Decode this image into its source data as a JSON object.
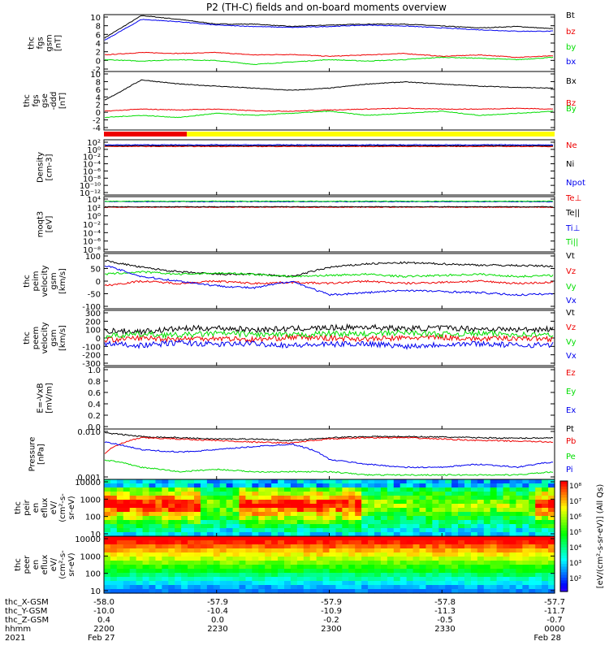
{
  "title": "P2 (TH-C) fields and on-board moments overview",
  "colors": {
    "black": "#000000",
    "red": "#ee0000",
    "green": "#00dd00",
    "blue": "#0000ee",
    "yellow": "#ffff00"
  },
  "chart_data": [
    {
      "type": "line",
      "id": "fgs",
      "ylabel": [
        "thc",
        "fgs",
        "gsm",
        "[nT]"
      ],
      "yticks": [
        "10",
        "8",
        "6",
        "4",
        "2",
        "0",
        "-2"
      ],
      "ylim": [
        -2,
        10
      ],
      "series": [
        {
          "name": "Bt",
          "color": "black",
          "y": [
            5,
            9.8,
            9,
            8,
            8,
            7.5,
            7.8,
            8,
            8,
            7.6,
            7.2,
            7.5,
            7
          ]
        },
        {
          "name": "bz",
          "color": "red",
          "y": [
            1.5,
            2,
            1.8,
            2,
            1.5,
            1.6,
            1.2,
            1.5,
            1.8,
            1.2,
            1.5,
            1,
            1.3
          ]
        },
        {
          "name": "by",
          "color": "green",
          "y": [
            0.5,
            0.2,
            0.5,
            0.3,
            -0.5,
            0,
            0.5,
            0.2,
            0.5,
            1,
            0.8,
            0.5,
            1
          ]
        },
        {
          "name": "bx",
          "color": "blue",
          "y": [
            4.5,
            9,
            8.5,
            7.8,
            7.5,
            7.3,
            7.5,
            7.8,
            7.6,
            7.2,
            6.8,
            6.5,
            6.5
          ]
        }
      ]
    },
    {
      "type": "line",
      "id": "fgs-gse",
      "ylabel": [
        "thc",
        "fgs",
        "gse",
        "-ddd",
        "[nT]"
      ],
      "yticks": [
        "10",
        "8",
        "6",
        "4",
        "2",
        "0",
        "-2",
        "-4"
      ],
      "ylim": [
        -4,
        10
      ],
      "series": [
        {
          "name": "Bx",
          "color": "black",
          "y": [
            3,
            8,
            7,
            6.5,
            6,
            5.5,
            6,
            7,
            7.5,
            7,
            6.5,
            6.2,
            6
          ]
        },
        {
          "name": "Bz",
          "color": "red",
          "y": [
            0.5,
            1,
            0.8,
            1,
            0.6,
            0.5,
            0.8,
            1,
            1.2,
            1,
            1,
            1.2,
            1
          ]
        },
        {
          "name": "By",
          "color": "green",
          "y": [
            -1,
            -0.5,
            -1,
            0,
            -0.5,
            0,
            0.5,
            -0.5,
            0,
            0.5,
            -0.5,
            0,
            0.5
          ]
        }
      ]
    },
    {
      "type": "line",
      "id": "density",
      "ylabel": [
        "Density",
        "[cm-3]"
      ],
      "yticks": [
        "10²",
        "10⁰",
        "10⁻²",
        "10⁻⁴",
        "10⁻⁶",
        "10⁻⁸",
        "10⁻¹⁰",
        "10⁻¹²"
      ],
      "ylim": [
        -12,
        2
      ],
      "series": [
        {
          "name": "Ne",
          "color": "red",
          "y": [
            0.3,
            0.3,
            0.3,
            0.3,
            0.3,
            0.3,
            0.3,
            0.3,
            0.3
          ]
        },
        {
          "name": "Ni",
          "color": "black",
          "y": [
            0.5,
            0.5,
            0.5,
            0.5,
            0.5,
            0.5,
            0.5,
            0.5,
            0.5
          ]
        },
        {
          "name": "Npot",
          "color": "blue",
          "y": [
            0.7,
            0.7,
            0.7,
            0.7,
            0.7,
            0.7,
            0.7,
            0.7,
            0.7
          ]
        }
      ]
    },
    {
      "type": "line",
      "id": "temp",
      "ylabel": [
        "moqt3",
        "[eV]"
      ],
      "yticks": [
        "10⁴",
        "10²",
        "10⁰",
        "10⁻²",
        "10⁻⁴",
        "10⁻⁶",
        "10⁻⁸"
      ],
      "ylim": [
        -8,
        4
      ],
      "series": [
        {
          "name": "Te⊥",
          "color": "red",
          "y": [
            1.7,
            1.7,
            1.7,
            1.7,
            1.7
          ]
        },
        {
          "name": "Te||",
          "color": "black",
          "y": [
            1.8,
            1.8,
            1.8,
            1.8,
            1.8
          ]
        },
        {
          "name": "Ti⊥",
          "color": "blue",
          "y": [
            2.9,
            2.9,
            2.9,
            2.9,
            2.9
          ]
        },
        {
          "name": "Ti||",
          "color": "green",
          "y": [
            3,
            3,
            3,
            3,
            3
          ]
        }
      ]
    },
    {
      "type": "line",
      "id": "peim",
      "ylabel": [
        "thc",
        "peim",
        "velocity",
        "gsm",
        "[km/s]"
      ],
      "yticks": [
        "100",
        "50",
        "0",
        "-50",
        "-100"
      ],
      "ylim": [
        -130,
        110
      ],
      "series": [
        {
          "name": "Vt",
          "color": "black",
          "y": [
            80,
            50,
            30,
            20,
            20,
            10,
            50,
            65,
            70,
            65,
            60,
            58,
            55
          ]
        },
        {
          "name": "Vz",
          "color": "red",
          "y": [
            -30,
            -10,
            -20,
            -10,
            -20,
            -15,
            -20,
            -10,
            -20,
            -15,
            -10,
            -20,
            -15
          ]
        },
        {
          "name": "Vy",
          "color": "green",
          "y": [
            20,
            30,
            20,
            25,
            20,
            10,
            15,
            20,
            10,
            15,
            20,
            10,
            15
          ]
        },
        {
          "name": "Vx",
          "color": "blue",
          "y": [
            60,
            10,
            -10,
            -30,
            -40,
            -10,
            -70,
            -60,
            -50,
            -55,
            -60,
            -70,
            -65
          ]
        }
      ]
    },
    {
      "type": "line",
      "id": "peem",
      "ylabel": [
        "thc",
        "peem",
        "velocity",
        "gsm",
        "[km/s]"
      ],
      "yticks": [
        "300",
        "200",
        "100",
        "0",
        "-100",
        "-200",
        "-300"
      ],
      "ylim": [
        -300,
        300
      ],
      "series": [
        {
          "name": "Vt",
          "color": "black",
          "y": [
            80,
            70,
            100,
            110,
            90,
            100,
            110,
            120,
            100,
            110,
            100,
            90,
            100
          ]
        },
        {
          "name": "Vz",
          "color": "red",
          "y": [
            -20,
            0,
            -10,
            0,
            -20,
            10,
            0,
            -10,
            0,
            10,
            -10,
            0,
            -10
          ]
        },
        {
          "name": "Vy",
          "color": "green",
          "y": [
            20,
            40,
            30,
            50,
            40,
            30,
            50,
            40,
            60,
            40,
            50,
            40,
            30
          ]
        },
        {
          "name": "Vx",
          "color": "blue",
          "y": [
            -60,
            -80,
            -50,
            -70,
            -60,
            -80,
            -70,
            -60,
            -90,
            -70,
            -60,
            -80,
            -70
          ]
        }
      ]
    },
    {
      "type": "line",
      "id": "efield",
      "ylabel": [
        "E=-VxB",
        "[mV/m]"
      ],
      "yticks": [
        "1.0",
        "0.8",
        "0.6",
        "0.4",
        "0.2",
        "0.0"
      ],
      "ylim": [
        0,
        1
      ],
      "series": [
        {
          "name": "Ez",
          "color": "red",
          "y": []
        },
        {
          "name": "Ey",
          "color": "green",
          "y": []
        },
        {
          "name": "Ex",
          "color": "blue",
          "y": []
        }
      ]
    },
    {
      "type": "line",
      "id": "pressure",
      "ylabel": [
        "Pressure",
        "[nPa]"
      ],
      "yticks": [
        "0.010",
        "0.001"
      ],
      "ylim": [
        0.001,
        0.1
      ],
      "yscale": "log",
      "series": [
        {
          "name": "Pt",
          "color": "black",
          "y": [
            0.07,
            0.05,
            0.045,
            0.04,
            0.04,
            0.035,
            0.045,
            0.05,
            0.05,
            0.048,
            0.045,
            0.043,
            0.045
          ]
        },
        {
          "name": "Pb",
          "color": "red",
          "y": [
            0.01,
            0.045,
            0.04,
            0.035,
            0.03,
            0.028,
            0.04,
            0.045,
            0.045,
            0.04,
            0.035,
            0.033,
            0.03
          ]
        },
        {
          "name": "Pe",
          "color": "green",
          "y": [
            0.006,
            0.003,
            0.002,
            0.0025,
            0.002,
            0.002,
            0.002,
            0.0015,
            0.0015,
            0.0015,
            0.0015,
            0.0015,
            0.002
          ]
        },
        {
          "name": "Pi",
          "color": "blue",
          "y": [
            0.03,
            0.015,
            0.012,
            0.015,
            0.02,
            0.025,
            0.006,
            0.004,
            0.003,
            0.003,
            0.004,
            0.003,
            0.005
          ]
        }
      ]
    },
    {
      "type": "heatmap",
      "id": "peir",
      "ylabel": [
        "thc",
        "peir",
        "en",
        "eflux",
        "eV/",
        "(cm²-s-",
        "sr-eV)"
      ],
      "yticks": [
        "10000",
        "1000",
        "100",
        "10"
      ],
      "ylim": [
        10,
        20000
      ],
      "yscale": "log"
    },
    {
      "type": "heatmap",
      "id": "peer",
      "ylabel": [
        "thc",
        "peer",
        "en",
        "eflux",
        "eV/",
        "(cm²-s-",
        "sr-eV)"
      ],
      "yticks": [
        "10000",
        "1000",
        "100",
        "10"
      ],
      "ylim": [
        10,
        20000
      ],
      "yscale": "log"
    }
  ],
  "colorbar": {
    "label": "[eV/(cm²-s-sr-eV)] (All Qs)",
    "ticks": [
      "10⁸",
      "10⁷",
      "10⁶",
      "10⁵",
      "10⁴",
      "10³",
      "10²"
    ]
  },
  "xaxis": {
    "rows": [
      {
        "label": "thc_X-GSM",
        "values": [
          "-58.0",
          "-57.9",
          "-57.9",
          "-57.8",
          "-57.7"
        ]
      },
      {
        "label": "thc_Y-GSM",
        "values": [
          "-10.0",
          "-10.4",
          "-10.9",
          "-11.3",
          "-11.7"
        ]
      },
      {
        "label": "thc_Z-GSM",
        "values": [
          "0.4",
          "0.0",
          "-0.2",
          "-0.5",
          "-0.7"
        ]
      },
      {
        "label": "hhmm",
        "values": [
          "2200",
          "2230",
          "2300",
          "2330",
          "0000"
        ]
      },
      {
        "label": "2021",
        "values": [
          "Feb 27",
          "",
          "",
          "",
          "Feb 28"
        ]
      }
    ]
  }
}
